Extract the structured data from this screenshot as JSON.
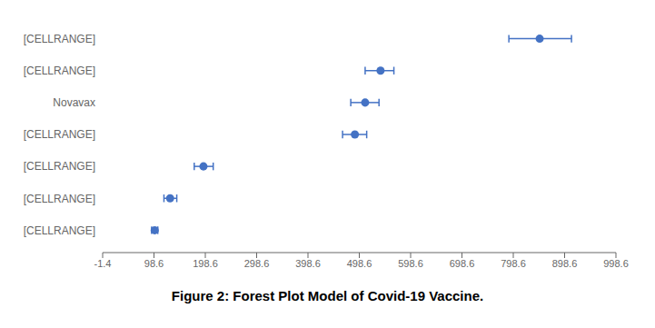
{
  "chart_data": {
    "type": "forest",
    "title": "Figure 2: Forest Plot Model of Covid-19 Vaccine.",
    "categories": [
      "[CELLRANGE]",
      "[CELLRANGE]",
      "Novavax",
      "[CELLRANGE]",
      "[CELLRANGE]",
      "[CELLRANGE]",
      "[CELLRANGE]"
    ],
    "values": [
      850,
      540,
      510,
      490,
      195,
      130,
      100
    ],
    "ci_low": [
      790,
      510,
      482,
      466,
      177,
      118,
      94
    ],
    "ci_high": [
      912,
      566,
      537,
      513,
      214,
      143,
      106
    ],
    "color": "#4472C4",
    "xlim": [
      -1.4,
      998.6
    ],
    "xticks": [
      -1.4,
      98.6,
      198.6,
      298.6,
      398.6,
      498.6,
      598.6,
      698.6,
      798.6,
      898.6,
      998.6
    ],
    "grid": false
  }
}
